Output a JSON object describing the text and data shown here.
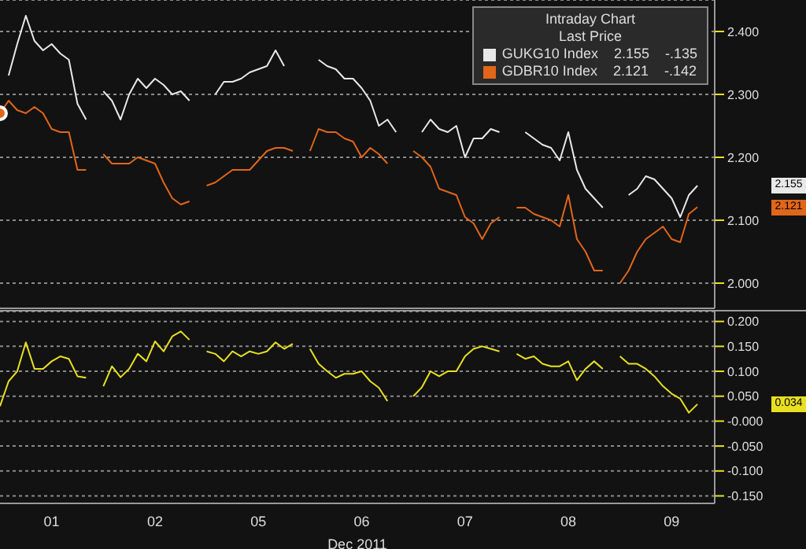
{
  "chart_data": [
    {
      "type": "line",
      "legend": "top right",
      "legend_title": "Intraday Chart",
      "grid": "y",
      "tick_labels": "y",
      "categories": [
        null,
        null,
        null,
        null,
        null,
        null,
        "01",
        null,
        null,
        null,
        null,
        null,
        null,
        null,
        null,
        null,
        null,
        null,
        "02",
        null,
        null,
        null,
        null,
        null,
        null,
        null,
        null,
        null,
        null,
        null,
        "05",
        null,
        null,
        null,
        null,
        null,
        null,
        null,
        null,
        null,
        null,
        null,
        "06",
        null,
        null,
        null,
        null,
        null,
        null,
        null,
        null,
        null,
        null,
        null,
        "07",
        null,
        null,
        null,
        null,
        null,
        null,
        null,
        null,
        null,
        null,
        null,
        "08",
        null,
        null,
        null,
        null,
        null,
        null,
        null,
        null,
        null,
        null,
        null,
        "09",
        null,
        null,
        null,
        null,
        null
      ],
      "ylim": [
        1.96,
        2.45
      ],
      "yticks": [
        {
          "value": 2.0,
          "label": "2.000"
        },
        {
          "value": 2.1,
          "label": "2.100"
        },
        {
          "value": 2.2,
          "label": "2.200"
        },
        {
          "value": 2.3,
          "label": "2.300"
        },
        {
          "value": 2.4,
          "label": "2.400"
        }
      ],
      "annotations": [
        "Last Price",
        "2.155",
        "2.121",
        "-.135",
        "-.142"
      ],
      "series": [
        {
          "name": "GUKG10 Index",
          "color": "#e8e8e8",
          "values": [
            null,
            2.33,
            2.38,
            2.425,
            2.385,
            2.37,
            2.38,
            2.365,
            2.355,
            2.285,
            2.26,
            null,
            2.305,
            2.29,
            2.26,
            2.3,
            2.325,
            2.31,
            2.325,
            2.315,
            2.3,
            2.305,
            2.29,
            null,
            null,
            2.3,
            2.32,
            2.32,
            2.325,
            2.335,
            2.34,
            2.345,
            2.37,
            2.345,
            null,
            null,
            null,
            2.355,
            2.345,
            2.34,
            2.325,
            2.325,
            2.31,
            2.29,
            2.25,
            2.26,
            2.24,
            null,
            null,
            2.24,
            2.26,
            2.245,
            2.24,
            2.25,
            2.2,
            2.23,
            2.23,
            2.245,
            2.24,
            null,
            null,
            2.24,
            2.23,
            2.22,
            2.215,
            2.195,
            2.24,
            2.18,
            2.15,
            2.135,
            2.12,
            null,
            null,
            2.14,
            2.15,
            2.17,
            2.165,
            2.15,
            2.135,
            2.105,
            2.14,
            2.155,
            null,
            null
          ]
        },
        {
          "name": "GDBR10 Index",
          "color": "#e0661a",
          "values": [
            2.27,
            2.29,
            2.275,
            2.27,
            2.28,
            2.27,
            2.245,
            2.24,
            2.24,
            2.18,
            2.18,
            null,
            2.205,
            2.19,
            2.19,
            2.19,
            2.2,
            2.195,
            2.19,
            2.16,
            2.135,
            2.125,
            2.13,
            null,
            2.155,
            2.16,
            2.17,
            2.18,
            2.18,
            2.18,
            2.195,
            2.21,
            2.215,
            2.215,
            2.21,
            null,
            2.21,
            2.245,
            2.24,
            2.24,
            2.23,
            2.225,
            2.2,
            2.215,
            2.205,
            2.19,
            null,
            null,
            2.21,
            2.2,
            2.185,
            2.15,
            2.145,
            2.14,
            2.105,
            2.095,
            2.07,
            2.095,
            2.105,
            null,
            2.12,
            2.12,
            2.11,
            2.105,
            2.1,
            2.09,
            2.14,
            2.07,
            2.05,
            2.02,
            2.02,
            null,
            2.0,
            2.02,
            2.05,
            2.07,
            2.08,
            2.09,
            2.07,
            2.065,
            2.11,
            2.121,
            null,
            null
          ]
        }
      ]
    },
    {
      "type": "line",
      "grid": "y",
      "xlabel": "Dec 2011",
      "categories": [
        null,
        null,
        null,
        null,
        null,
        null,
        "01",
        null,
        null,
        null,
        null,
        null,
        null,
        null,
        null,
        null,
        null,
        null,
        "02",
        null,
        null,
        null,
        null,
        null,
        null,
        null,
        null,
        null,
        null,
        null,
        "05",
        null,
        null,
        null,
        null,
        null,
        null,
        null,
        null,
        null,
        null,
        null,
        "06",
        null,
        null,
        null,
        null,
        null,
        null,
        null,
        null,
        null,
        null,
        null,
        "07",
        null,
        null,
        null,
        null,
        null,
        null,
        null,
        null,
        null,
        null,
        null,
        "08",
        null,
        null,
        null,
        null,
        null,
        null,
        null,
        null,
        null,
        null,
        null,
        "09",
        null,
        null,
        null,
        null,
        null
      ],
      "ylim": [
        -0.165,
        0.22
      ],
      "yticks": [
        {
          "value": -0.15,
          "label": "-0.150"
        },
        {
          "value": -0.1,
          "label": "-0.100"
        },
        {
          "value": -0.05,
          "label": "-0.050"
        },
        {
          "value": 0,
          "label": "-0.000"
        },
        {
          "value": 0.05,
          "label": "0.050"
        },
        {
          "value": 0.1,
          "label": "0.100"
        },
        {
          "value": 0.15,
          "label": "0.150"
        },
        {
          "value": 0.2,
          "label": "0.200"
        }
      ],
      "annotations": [
        "0.034"
      ],
      "series": [
        {
          "color": "#e8e020",
          "values": [
            0.03,
            0.08,
            0.1,
            0.158,
            0.105,
            0.105,
            0.12,
            0.13,
            0.125,
            0.09,
            0.087,
            null,
            0.07,
            0.11,
            0.088,
            0.105,
            0.135,
            0.12,
            0.16,
            0.14,
            0.17,
            0.18,
            0.163,
            null,
            0.14,
            0.135,
            0.12,
            0.14,
            0.13,
            0.14,
            0.135,
            0.14,
            0.158,
            0.145,
            0.155,
            null,
            0.145,
            0.115,
            0.1,
            0.087,
            0.095,
            0.095,
            0.1,
            0.08,
            0.067,
            0.04,
            null,
            null,
            0.05,
            0.068,
            0.1,
            0.09,
            0.1,
            0.1,
            0.13,
            0.145,
            0.15,
            0.145,
            0.14,
            null,
            0.135,
            0.125,
            0.13,
            0.115,
            0.11,
            0.11,
            0.12,
            0.082,
            0.105,
            0.12,
            0.105,
            null,
            0.13,
            0.115,
            0.115,
            0.105,
            0.09,
            0.07,
            0.055,
            0.045,
            0.017,
            0.034,
            null,
            null
          ]
        }
      ]
    }
  ]
}
